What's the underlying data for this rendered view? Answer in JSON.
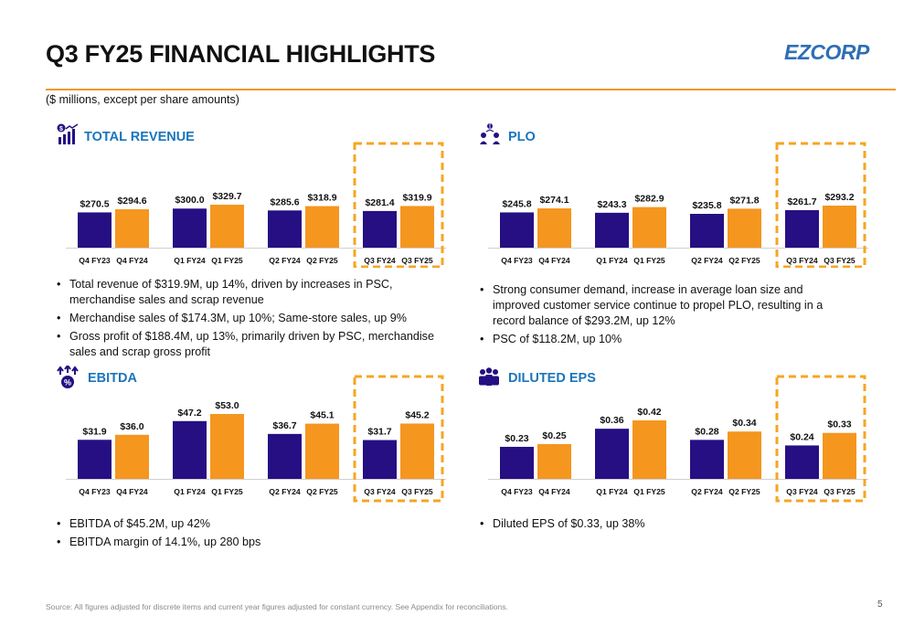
{
  "header": {
    "title": "Q3 FY25 FINANCIAL HIGHLIGHTS",
    "logo_text": "EZCORP",
    "subtitle": "($ millions, except per share amounts)"
  },
  "colors": {
    "prior": "#250f83",
    "current": "#f5961f",
    "accent": "#1b75bb",
    "highlight": "#f5a623"
  },
  "panels": [
    {
      "title": "TOTAL REVENUE",
      "icon": "revenue-chart-icon",
      "bullets": [
        "Total revenue of $319.9M, up 14%, driven by increases in PSC, merchandise sales and scrap revenue",
        "Merchandise sales of $174.3M, up 10%; Same-store sales, up 9%",
        "Gross profit of $188.4M, up 13%, primarily driven by PSC, merchandise sales and scrap gross profit"
      ]
    },
    {
      "title": "PLO",
      "icon": "loan-people-icon",
      "bullets": [
        "Strong consumer demand, increase in average loan size and improved customer service continue to propel PLO, resulting in a record balance of $293.2M, up 12%",
        "PSC of $118.2M, up 10%"
      ]
    },
    {
      "title": "EBITDA",
      "icon": "percent-growth-icon",
      "bullets": [
        "EBITDA of $45.2M, up 42%",
        "EBITDA margin of 14.1%, up 280 bps"
      ]
    },
    {
      "title": "DILUTED EPS",
      "icon": "shareholders-icon",
      "bullets": [
        "Diluted EPS of $0.33, up 38%"
      ]
    }
  ],
  "chart_data": [
    {
      "type": "bar",
      "title": "TOTAL REVENUE",
      "highlight_group": 3,
      "groups": [
        {
          "categories": [
            "Q4 FY23",
            "Q4 FY24"
          ],
          "values": [
            270.5,
            294.6
          ],
          "labels": [
            "$270.5",
            "$294.6"
          ]
        },
        {
          "categories": [
            "Q1 FY24",
            "Q1 FY25"
          ],
          "values": [
            300.0,
            329.7
          ],
          "labels": [
            "$300.0",
            "$329.7"
          ]
        },
        {
          "categories": [
            "Q2 FY24",
            "Q2 FY25"
          ],
          "values": [
            285.6,
            318.9
          ],
          "labels": [
            "$285.6",
            "$318.9"
          ]
        },
        {
          "categories": [
            "Q3 FY24",
            "Q3 FY25"
          ],
          "values": [
            281.4,
            319.9
          ],
          "labels": [
            "$281.4",
            "$319.9"
          ]
        }
      ]
    },
    {
      "type": "bar",
      "title": "PLO",
      "highlight_group": 3,
      "groups": [
        {
          "categories": [
            "Q4 FY23",
            "Q4 FY24"
          ],
          "values": [
            245.8,
            274.1
          ],
          "labels": [
            "$245.8",
            "$274.1"
          ]
        },
        {
          "categories": [
            "Q1 FY24",
            "Q1 FY25"
          ],
          "values": [
            243.3,
            282.9
          ],
          "labels": [
            "$243.3",
            "$282.9"
          ]
        },
        {
          "categories": [
            "Q2 FY24",
            "Q2 FY25"
          ],
          "values": [
            235.8,
            271.8
          ],
          "labels": [
            "$235.8",
            "$271.8"
          ]
        },
        {
          "categories": [
            "Q3 FY24",
            "Q3 FY25"
          ],
          "values": [
            261.7,
            293.2
          ],
          "labels": [
            "$261.7",
            "$293.2"
          ]
        }
      ]
    },
    {
      "type": "bar",
      "title": "EBITDA",
      "highlight_group": 3,
      "groups": [
        {
          "categories": [
            "Q4 FY23",
            "Q4 FY24"
          ],
          "values": [
            31.9,
            36.0
          ],
          "labels": [
            "$31.9",
            "$36.0"
          ]
        },
        {
          "categories": [
            "Q1 FY24",
            "Q1 FY25"
          ],
          "values": [
            47.2,
            53.0
          ],
          "labels": [
            "$47.2",
            "$53.0"
          ]
        },
        {
          "categories": [
            "Q2 FY24",
            "Q2 FY25"
          ],
          "values": [
            36.7,
            45.1
          ],
          "labels": [
            "$36.7",
            "$45.1"
          ]
        },
        {
          "categories": [
            "Q3 FY24",
            "Q3 FY25"
          ],
          "values": [
            31.7,
            45.2
          ],
          "labels": [
            "$31.7",
            "$45.2"
          ]
        }
      ]
    },
    {
      "type": "bar",
      "title": "DILUTED EPS",
      "highlight_group": 3,
      "groups": [
        {
          "categories": [
            "Q4 FY23",
            "Q4 FY24"
          ],
          "values": [
            0.23,
            0.25
          ],
          "labels": [
            "$0.23",
            "$0.25"
          ]
        },
        {
          "categories": [
            "Q1 FY24",
            "Q1 FY25"
          ],
          "values": [
            0.36,
            0.42
          ],
          "labels": [
            "$0.36",
            "$0.42"
          ]
        },
        {
          "categories": [
            "Q2 FY24",
            "Q2 FY25"
          ],
          "values": [
            0.28,
            0.34
          ],
          "labels": [
            "$0.28",
            "$0.34"
          ]
        },
        {
          "categories": [
            "Q3 FY24",
            "Q3 FY25"
          ],
          "values": [
            0.24,
            0.33
          ],
          "labels": [
            "$0.24",
            "$0.33"
          ]
        }
      ]
    }
  ],
  "footer": {
    "source": "Source: All figures adjusted for discrete items and current year figures adjusted for constant currency. See Appendix for reconciliations.",
    "page": "5"
  }
}
